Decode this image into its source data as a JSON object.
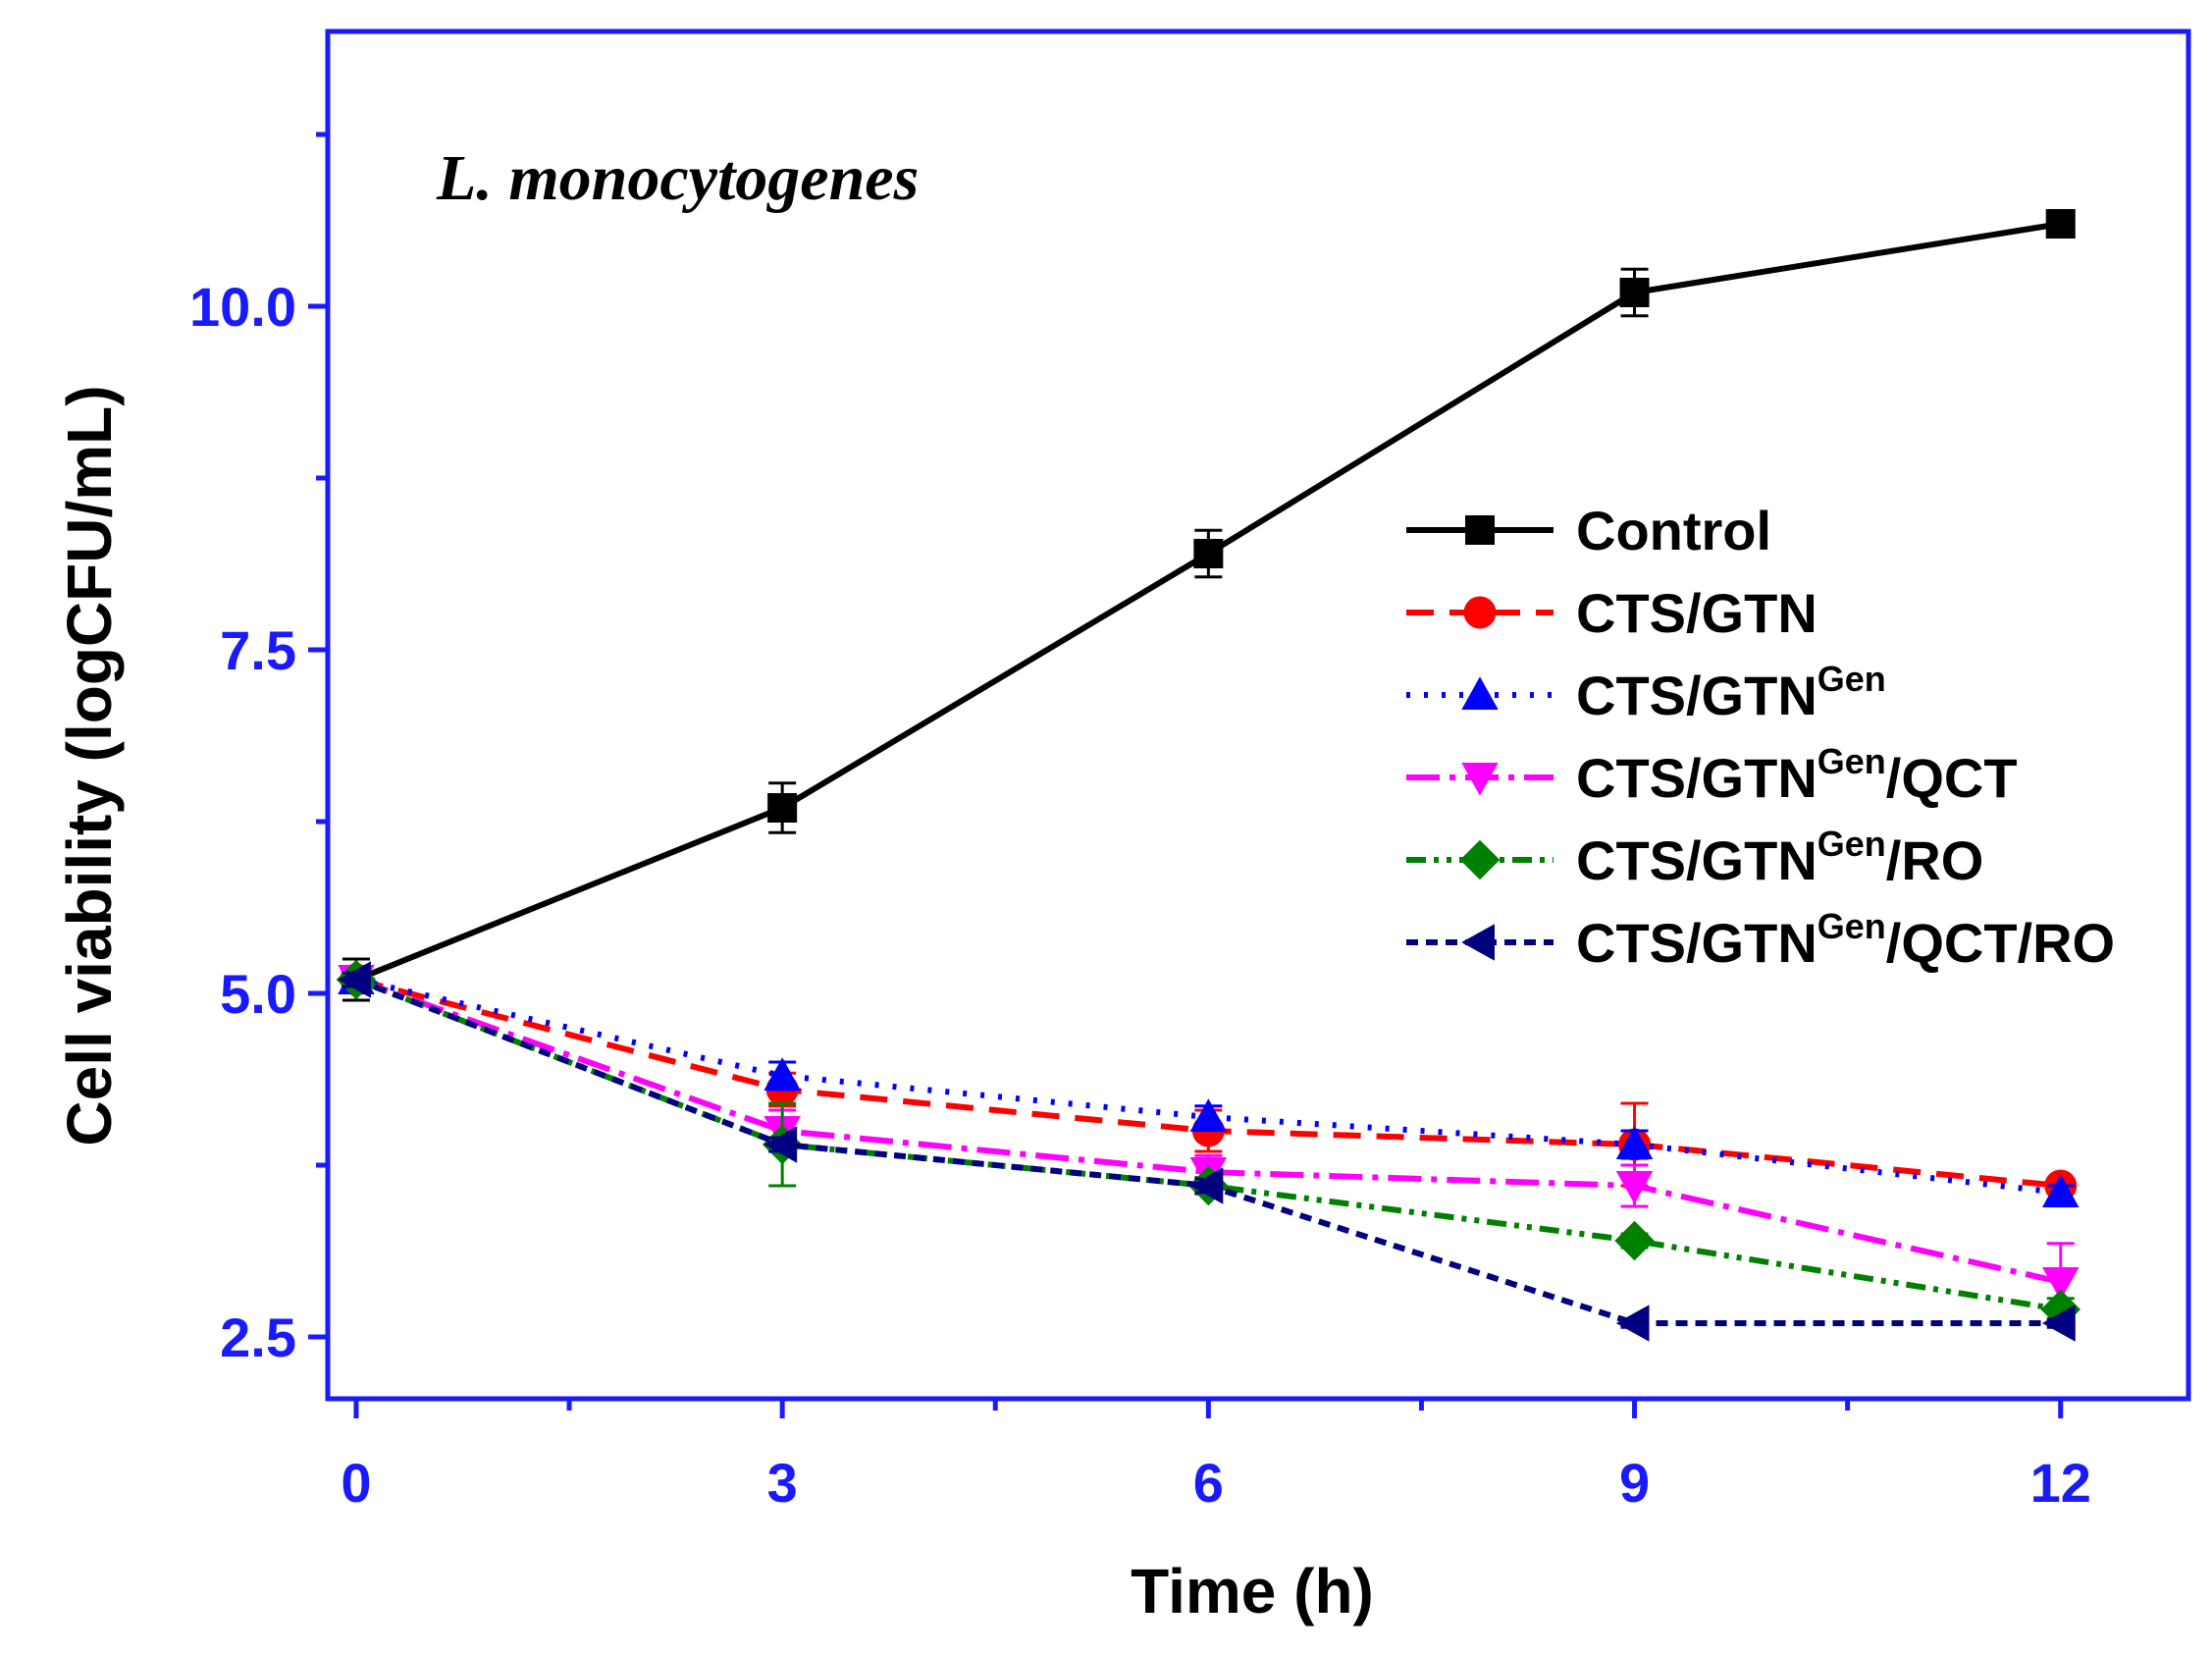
{
  "chart_data": {
    "type": "line",
    "title": "L. monocytogenes",
    "xlabel": "Time (h)",
    "ylabel": "Cell viability (logCFU/mL)",
    "xlim": [
      -0.2,
      12.9
    ],
    "ylim": [
      2.05,
      12.0
    ],
    "x": [
      0,
      3,
      6,
      9,
      12
    ],
    "x_ticks": [
      0,
      3,
      6,
      9,
      12
    ],
    "x_tick_labels": [
      "0",
      "3",
      "6",
      "9",
      "12"
    ],
    "x_minor_ticks": [
      1.5,
      4.5,
      7.5,
      10.5
    ],
    "y_ticks": [
      2.5,
      5.0,
      7.5,
      10.0
    ],
    "y_tick_labels": [
      "2.5",
      "5.0",
      "7.5",
      "10.0"
    ],
    "y_minor_ticks": [
      3.75,
      6.25,
      8.75,
      11.25
    ],
    "axis_color": "#1a1aff",
    "tick_label_color": "#1a1aff",
    "legend_position": "right",
    "series": [
      {
        "name": "Control",
        "name_parts": [
          "Control"
        ],
        "values": [
          5.1,
          6.35,
          8.2,
          10.1,
          10.6
        ],
        "errors": [
          0.15,
          0.18,
          0.17,
          0.17,
          0.0
        ],
        "color": "#000000",
        "marker": "square",
        "dash": ""
      },
      {
        "name": "CTS/GTN",
        "name_parts": [
          "CTS/GTN"
        ],
        "values": [
          5.1,
          4.3,
          4.0,
          3.9,
          3.6
        ],
        "errors": [
          0.05,
          0.12,
          0.15,
          0.3,
          0.05
        ],
        "color": "#ff0000",
        "marker": "circle",
        "dash": "28 16"
      },
      {
        "name": "CTS/GTNGen",
        "name_parts": [
          "CTS/GTN",
          "Gen"
        ],
        "values": [
          5.1,
          4.4,
          4.1,
          3.9,
          3.55
        ],
        "errors": [
          0.05,
          0.1,
          0.08,
          0.1,
          0.05
        ],
        "color": "#0000ff",
        "marker": "triangle-up",
        "dash": "4 14"
      },
      {
        "name": "CTS/GTNGen/QCT",
        "name_parts": [
          "CTS/GTN",
          "Gen",
          "/QCT"
        ],
        "values": [
          5.1,
          4.0,
          3.7,
          3.6,
          2.9
        ],
        "errors": [
          0.05,
          0.15,
          0.12,
          0.15,
          0.28
        ],
        "color": "#ff00ff",
        "marker": "triangle-down",
        "dash": "34 10 6 10"
      },
      {
        "name": "CTS/GTNGen/RO",
        "name_parts": [
          "CTS/GTN",
          "Gen",
          "/RO"
        ],
        "values": [
          5.1,
          3.9,
          3.6,
          3.2,
          2.7
        ],
        "errors": [
          0.05,
          0.3,
          0.06,
          0.05,
          0.08
        ],
        "color": "#008000",
        "marker": "diamond",
        "dash": "20 8 5 8 5 8"
      },
      {
        "name": "CTS/GTNGen/QCT/RO",
        "name_parts": [
          "CTS/GTN",
          "Gen",
          "/QCT/RO"
        ],
        "values": [
          5.1,
          3.9,
          3.6,
          2.6,
          2.6
        ],
        "errors": [
          0.05,
          0.05,
          0.05,
          0.03,
          0.03
        ],
        "color": "#000080",
        "marker": "triangle-left",
        "dash": "12 8"
      }
    ]
  }
}
